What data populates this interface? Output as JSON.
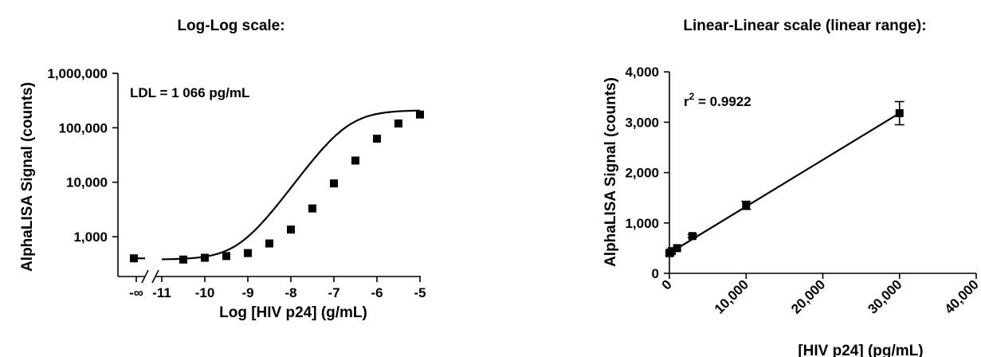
{
  "chart_data": [
    {
      "type": "scatter",
      "title": "Log-Log scale:",
      "xlabel": "Log [HIV p24] (g/mL)",
      "ylabel": "AlphaLISA Signal (counts)",
      "yscale": "log",
      "ylim": [
        200,
        1000000
      ],
      "xlim": [
        -11.3,
        -4.7
      ],
      "x_ticks": [
        -11,
        -10,
        -9,
        -8,
        -7,
        -6,
        -5
      ],
      "x_tick_labels": [
        "-11",
        "-10",
        "-9",
        "-8",
        "-7",
        "-6",
        "-5"
      ],
      "x_break_label": "-∞",
      "y_ticks": [
        1000,
        10000,
        100000,
        1000000
      ],
      "y_tick_labels": [
        "1,000",
        "10,000",
        "100,000",
        "1,000,000"
      ],
      "annotation": "LDL = 1 066 pg/mL",
      "zero_point": {
        "x": "-∞",
        "y": 400
      },
      "series": [
        {
          "x": [
            -10.5,
            -10,
            -9.5,
            -9,
            -8.5,
            -8,
            -7.5,
            -7,
            -6.5,
            -6,
            -5.5,
            -5
          ],
          "y": [
            380,
            410,
            440,
            500,
            750,
            1350,
            3300,
            9500,
            25000,
            63000,
            120000,
            175000
          ]
        }
      ],
      "fit": "4PL sigmoid",
      "grid": false
    },
    {
      "type": "scatter",
      "title": "Linear-Linear scale (linear range):",
      "xlabel": "[HIV p24] (pg/mL)",
      "ylabel": "AlphaLISA Signal (counts)",
      "xlim": [
        0,
        40000
      ],
      "ylim": [
        0,
        4000
      ],
      "x_ticks": [
        0,
        10000,
        20000,
        30000,
        40000
      ],
      "x_tick_labels": [
        "0",
        "10,000",
        "20,000",
        "30,000",
        "40,000"
      ],
      "y_ticks": [
        0,
        1000,
        2000,
        3000,
        4000
      ],
      "y_tick_labels": [
        "0",
        "1,000",
        "2,000",
        "3,000",
        "4,000"
      ],
      "annotation_prefix": "r",
      "annotation_sup": "2",
      "annotation_value": " = 0.9922",
      "series": [
        {
          "x": [
            0,
            100,
            300,
            1000,
            3000,
            10000,
            30000
          ],
          "y": [
            400,
            410,
            440,
            500,
            740,
            1350,
            3180
          ],
          "err": [
            0,
            0,
            0,
            0,
            30,
            80,
            230
          ]
        }
      ],
      "fit_line": [
        [
          0,
          400
        ],
        [
          30000,
          3180
        ]
      ],
      "grid": false
    }
  ]
}
